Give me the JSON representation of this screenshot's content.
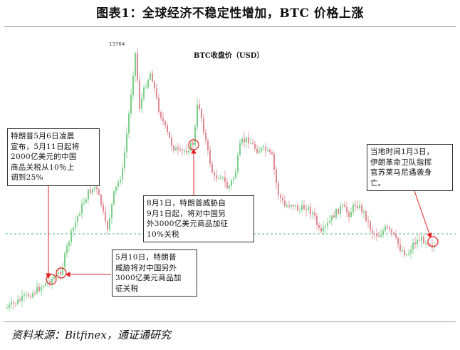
{
  "header": {
    "title": "图表1：全球经济不稳定性增加，BTC 价格上涨"
  },
  "footer": {
    "source": "资料来源：Bitfinex，通证通研究"
  },
  "colors": {
    "up": "#7ccf8a",
    "down": "#e08a93",
    "dash": "#4fb38a",
    "marker": "#e02020",
    "arrow": "#e02020"
  },
  "chart_data": {
    "type": "candlestick",
    "legend": "BTC收盘价（USD）",
    "peak_label": "13764",
    "reference_line": "dashed",
    "annotations": [
      {
        "id": "a1",
        "text": [
          "特朗普5月6日凌晨",
          "宣布，5月11日起将",
          "2000亿美元的中国",
          "商品关税从10％上",
          "调到25%"
        ]
      },
      {
        "id": "a2",
        "text": [
          "5月10日，特朗普",
          "威胁将对中国另外",
          "3000亿美元商品加",
          "征关税"
        ]
      },
      {
        "id": "a3",
        "text": [
          "8月1日，特朗普威胁自",
          "9月1日起，将对中国另",
          "外3000亿美元商品加征",
          "10%关税"
        ]
      },
      {
        "id": "a4",
        "text": [
          "当地时间1月3日，",
          "伊朗革命卫队指挥",
          "官苏莱马尼遇袭身",
          "亡。"
        ]
      }
    ]
  }
}
